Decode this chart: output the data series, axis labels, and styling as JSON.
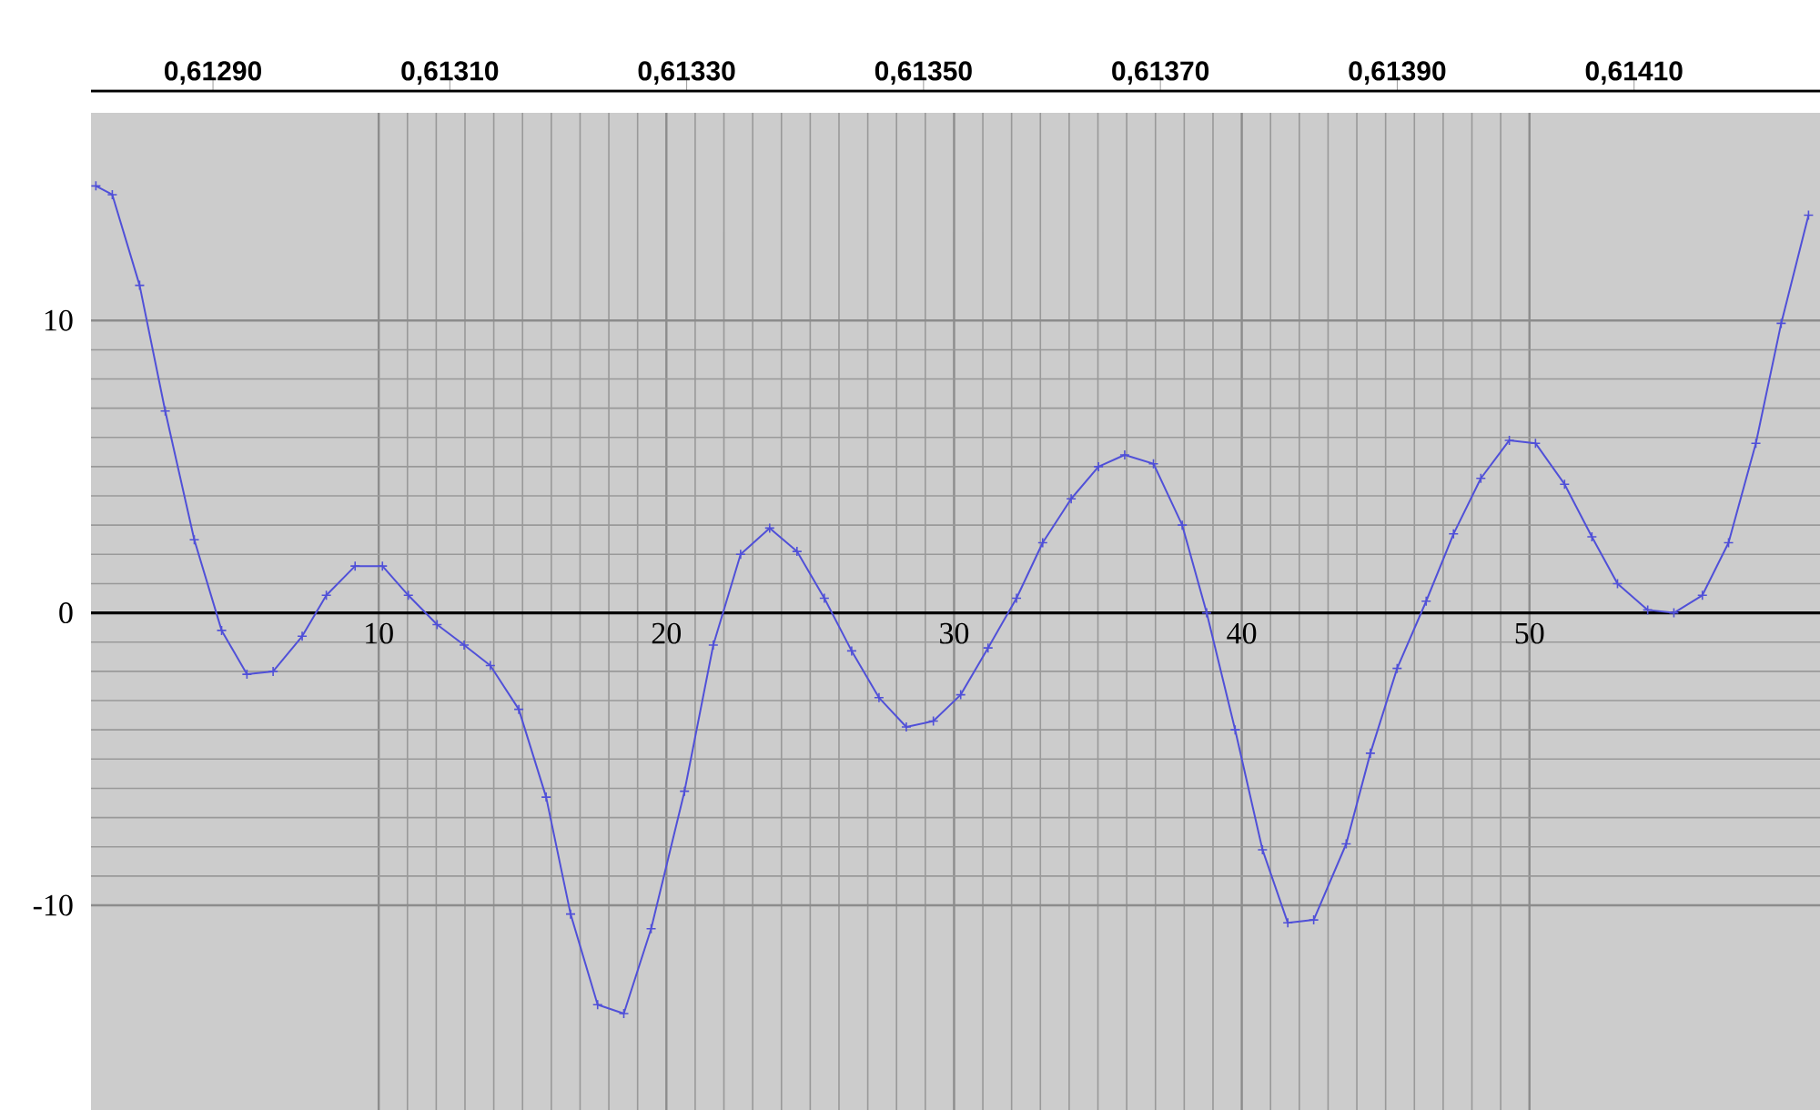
{
  "chart_data": {
    "type": "line",
    "x": [
      0.17,
      0.74,
      1.69,
      2.58,
      3.59,
      4.54,
      5.42,
      6.33,
      7.34,
      8.18,
      9.18,
      10.13,
      11.03,
      12.03,
      12.97,
      13.88,
      14.87,
      15.82,
      16.67,
      17.61,
      18.52,
      19.47,
      20.63,
      21.63,
      22.58,
      23.59,
      24.54,
      25.49,
      26.44,
      27.39,
      28.34,
      29.28,
      30.23,
      31.18,
      32.17,
      33.08,
      34.07,
      35.02,
      35.93,
      36.93,
      37.93,
      38.78,
      39.77,
      40.72,
      41.6,
      42.5,
      43.63,
      44.47,
      45.4,
      46.41,
      47.36,
      48.31,
      49.3,
      50.21,
      51.22,
      52.17,
      53.06,
      54.11,
      55.02,
      56.01,
      56.92,
      57.87,
      58.75,
      59.7
    ],
    "values": [
      14.6,
      14.3,
      11.2,
      6.9,
      2.5,
      -0.6,
      -2.1,
      -2.0,
      -0.8,
      0.6,
      1.6,
      1.6,
      0.6,
      -0.4,
      -1.1,
      -1.8,
      -3.3,
      -6.3,
      -10.3,
      -13.4,
      -13.7,
      -10.8,
      -6.1,
      -1.1,
      2.0,
      2.9,
      2.1,
      0.5,
      -1.3,
      -2.9,
      -3.9,
      -3.7,
      -2.8,
      -1.2,
      0.5,
      2.4,
      3.9,
      5.0,
      5.4,
      5.1,
      3.0,
      0.0,
      -4.0,
      -8.1,
      -10.6,
      -10.5,
      -7.9,
      -4.8,
      -1.9,
      0.4,
      2.7,
      4.6,
      5.9,
      5.8,
      4.4,
      2.6,
      1.0,
      0.1,
      0.0,
      0.6,
      2.4,
      5.8,
      9.9,
      13.6
    ],
    "color": "#5050d8",
    "marker": "cross",
    "xlim": [
      0,
      60.1
    ],
    "ylim": [
      -17,
      17.1
    ],
    "xticks": [
      10,
      20,
      30,
      40,
      50
    ],
    "yticks": [
      -10,
      0,
      10
    ],
    "x2lim": [
      0.612797,
      0.614257
    ],
    "x2ticks": [
      {
        "value": 0.6129,
        "label": "0,61290"
      },
      {
        "value": 0.6131,
        "label": "0,61310"
      },
      {
        "value": 0.6133,
        "label": "0,61330"
      },
      {
        "value": 0.6135,
        "label": "0,61350"
      },
      {
        "value": 0.6137,
        "label": "0,61370"
      },
      {
        "value": 0.6139,
        "label": "0,61390"
      },
      {
        "value": 0.6141,
        "label": "0,61410"
      }
    ],
    "grid": true
  }
}
